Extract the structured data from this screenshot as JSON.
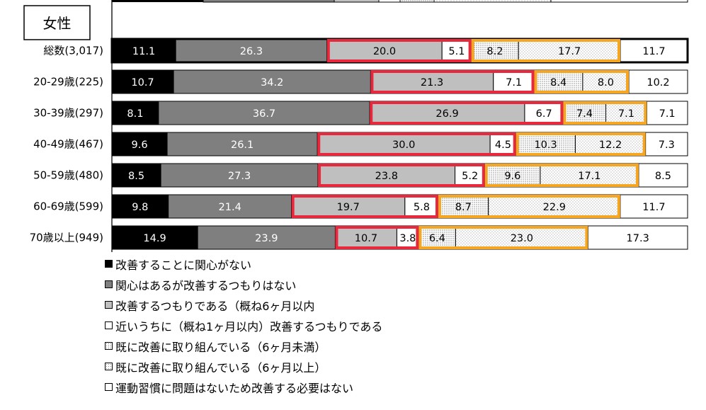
{
  "chart_data": {
    "type": "bar",
    "orientation": "horizontal",
    "stacked": "100%",
    "title": "女性",
    "categories": [
      "総数(3,017)",
      "20-29歳(225)",
      "30-39歳(297)",
      "40-49歳(467)",
      "50-59歳(480)",
      "60-69歳(599)",
      "70歳以上(949)"
    ],
    "series": [
      {
        "name": "改善することに関心がない",
        "color": "#000000",
        "values": [
          11.1,
          10.7,
          8.1,
          9.6,
          8.5,
          9.8,
          14.9
        ]
      },
      {
        "name": "関心はあるが改善するつもりはない",
        "color": "#7f7f7f",
        "values": [
          26.3,
          34.2,
          36.7,
          26.1,
          27.3,
          21.4,
          23.9
        ]
      },
      {
        "name": "改善するつもりである（概ね6ヶ月以内",
        "color": "#bfbfbf",
        "values": [
          20.0,
          21.3,
          26.9,
          30.0,
          23.8,
          19.7,
          10.7
        ]
      },
      {
        "name": "近いうちに（概ね1ヶ月以内）改善するつもりである",
        "color": "#ffffff",
        "values": [
          5.1,
          7.1,
          6.7,
          4.5,
          5.2,
          5.8,
          3.8
        ]
      },
      {
        "name": "既に改善に取り組んでいる（6ヶ月未満）",
        "color": "#dcdcdc",
        "values": [
          8.2,
          8.4,
          7.4,
          10.3,
          9.6,
          8.7,
          6.4
        ]
      },
      {
        "name": "既に改善に取り組んでいる（6ヶ月以上）",
        "color": "#ececec",
        "values": [
          17.7,
          8.0,
          7.1,
          12.2,
          17.1,
          22.9,
          23.0
        ]
      },
      {
        "name": "運動習慣に問題はないため改善する必要はない",
        "color": "#ffffff",
        "values": [
          11.7,
          10.2,
          7.1,
          7.3,
          8.5,
          11.7,
          17.3
        ]
      }
    ],
    "xlim": [
      0,
      100
    ],
    "highlight_groups": [
      {
        "series": [
          2,
          3
        ],
        "color": "#e8283c"
      },
      {
        "series": [
          4,
          5
        ],
        "color": "#f5a623"
      }
    ]
  }
}
